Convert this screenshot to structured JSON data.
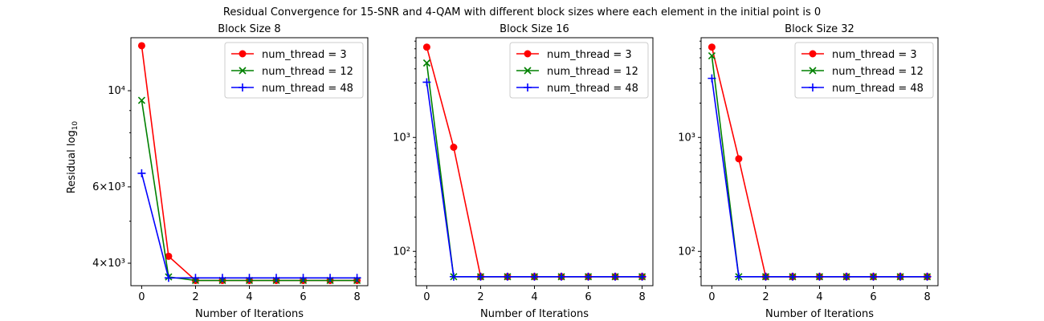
{
  "suptitle": "Residual Convergence for 15-SNR and 4-QAM with different block sizes where each element in the initial point is 0",
  "ylabel_main": "Residual log",
  "ylabel_sub": "10",
  "legend_labels": [
    "num_thread = 3",
    "num_thread = 12",
    "num_thread = 48"
  ],
  "chart_data": [
    {
      "type": "line",
      "title": "Block Size 8",
      "xlabel": "Number of Iterations",
      "ylabel": "Residual log10",
      "yscale": "log",
      "xlim": [
        -0.4,
        8.4
      ],
      "ylim": [
        3550,
        13250
      ],
      "xticks": [
        0,
        2,
        4,
        6,
        8
      ],
      "xtick_labels": [
        "0",
        "2",
        "4",
        "6",
        "8"
      ],
      "yticks": [
        4000,
        6000,
        10000
      ],
      "ytick_labels": [
        "4×10³",
        "6×10³",
        "10⁴"
      ],
      "minor_yticks": [
        5000,
        7000,
        8000,
        9000
      ],
      "legend": "upper right",
      "grid": false,
      "x": [
        0,
        1,
        2,
        3,
        4,
        5,
        6,
        7,
        8
      ],
      "series": [
        {
          "name": "num_thread = 3",
          "color": "#ff0000",
          "marker": "circle",
          "values": [
            12700,
            4150,
            3650,
            3650,
            3650,
            3650,
            3650,
            3650,
            3650
          ]
        },
        {
          "name": "num_thread = 12",
          "color": "#008000",
          "marker": "x",
          "values": [
            9500,
            3720,
            3650,
            3650,
            3650,
            3650,
            3650,
            3650,
            3650
          ]
        },
        {
          "name": "num_thread = 48",
          "color": "#0000ff",
          "marker": "plus",
          "values": [
            6450,
            3700,
            3700,
            3700,
            3700,
            3700,
            3700,
            3700,
            3700
          ]
        }
      ]
    },
    {
      "type": "line",
      "title": "Block Size 16",
      "xlabel": "Number of Iterations",
      "ylabel": "",
      "yscale": "log",
      "xlim": [
        -0.4,
        8.4
      ],
      "ylim": [
        50,
        7500
      ],
      "xticks": [
        0,
        2,
        4,
        6,
        8
      ],
      "xtick_labels": [
        "0",
        "2",
        "4",
        "6",
        "8"
      ],
      "yticks": [
        100,
        1000
      ],
      "ytick_labels": [
        "10²",
        "10³"
      ],
      "minor_yticks": [
        60,
        70,
        80,
        90,
        200,
        300,
        400,
        500,
        600,
        700,
        800,
        900,
        2000,
        3000,
        4000,
        5000,
        6000,
        7000
      ],
      "legend": "upper right",
      "grid": false,
      "x": [
        0,
        1,
        2,
        3,
        4,
        5,
        6,
        7,
        8
      ],
      "series": [
        {
          "name": "num_thread = 3",
          "color": "#ff0000",
          "marker": "circle",
          "values": [
            6200,
            820,
            60,
            60,
            60,
            60,
            60,
            60,
            60
          ]
        },
        {
          "name": "num_thread = 12",
          "color": "#008000",
          "marker": "x",
          "values": [
            4500,
            60,
            60,
            60,
            60,
            60,
            60,
            60,
            60
          ]
        },
        {
          "name": "num_thread = 48",
          "color": "#0000ff",
          "marker": "plus",
          "values": [
            3050,
            60,
            60,
            60,
            60,
            60,
            60,
            60,
            60
          ]
        }
      ]
    },
    {
      "type": "line",
      "title": "Block Size 32",
      "xlabel": "Number of Iterations",
      "ylabel": "",
      "yscale": "log",
      "xlim": [
        -0.4,
        8.4
      ],
      "ylim": [
        50,
        7500
      ],
      "xticks": [
        0,
        2,
        4,
        6,
        8
      ],
      "xtick_labels": [
        "0",
        "2",
        "4",
        "6",
        "8"
      ],
      "yticks": [
        100,
        1000
      ],
      "ytick_labels": [
        "10²",
        "10³"
      ],
      "minor_yticks": [
        60,
        70,
        80,
        90,
        200,
        300,
        400,
        500,
        600,
        700,
        800,
        900,
        2000,
        3000,
        4000,
        5000,
        6000,
        7000
      ],
      "legend": "upper right",
      "grid": false,
      "x": [
        0,
        1,
        2,
        3,
        4,
        5,
        6,
        7,
        8
      ],
      "series": [
        {
          "name": "num_thread = 3",
          "color": "#ff0000",
          "marker": "circle",
          "values": [
            6200,
            650,
            60,
            60,
            60,
            60,
            60,
            60,
            60
          ]
        },
        {
          "name": "num_thread = 12",
          "color": "#008000",
          "marker": "x",
          "values": [
            5200,
            60,
            60,
            60,
            60,
            60,
            60,
            60,
            60
          ]
        },
        {
          "name": "num_thread = 48",
          "color": "#0000ff",
          "marker": "plus",
          "values": [
            3300,
            60,
            60,
            60,
            60,
            60,
            60,
            60,
            60
          ]
        }
      ]
    }
  ]
}
